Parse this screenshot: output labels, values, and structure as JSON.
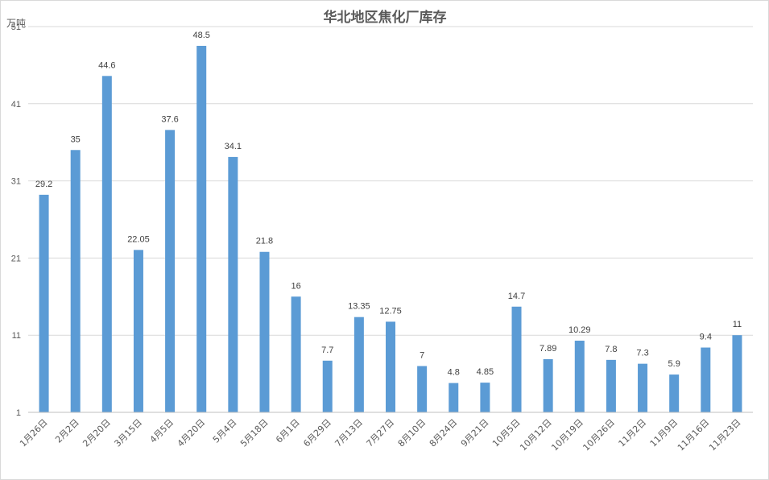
{
  "chart_data": {
    "type": "bar",
    "title": "华北地区焦化厂库存",
    "unit": "万吨",
    "categories": [
      "1月26日",
      "2月2日",
      "2月20日",
      "3月15日",
      "4月5日",
      "4月20日",
      "5月4日",
      "5月18日",
      "6月1日",
      "6月29日",
      "7月13日",
      "7月27日",
      "8月10日",
      "8月24日",
      "9月21日",
      "10月5日",
      "10月12日",
      "10月19日",
      "10月26日",
      "11月2日",
      "11月9日",
      "11月16日",
      "11月23日"
    ],
    "values": [
      29.2,
      35,
      44.6,
      22.05,
      37.6,
      48.5,
      34.1,
      21.8,
      16,
      7.7,
      13.35,
      12.75,
      7,
      4.8,
      4.85,
      14.7,
      7.89,
      10.29,
      7.8,
      7.3,
      5.9,
      9.4,
      11
    ],
    "data_labels": [
      "29.2",
      "35",
      "44.6",
      "22.05",
      "37.6",
      "48.5",
      "34.1",
      "21.8",
      "16",
      "7.7",
      "13.35",
      "12.75",
      "7",
      "4.8",
      "4.85",
      "14.7",
      "7.89",
      "10.29",
      "7.8",
      "7.3",
      "5.9",
      "9.4",
      "11"
    ],
    "yticks": [
      1,
      11,
      21,
      31,
      41,
      51
    ],
    "ylim": [
      1,
      51
    ],
    "bar_color": "#5B9BD5",
    "grid": true,
    "legend": "none"
  }
}
